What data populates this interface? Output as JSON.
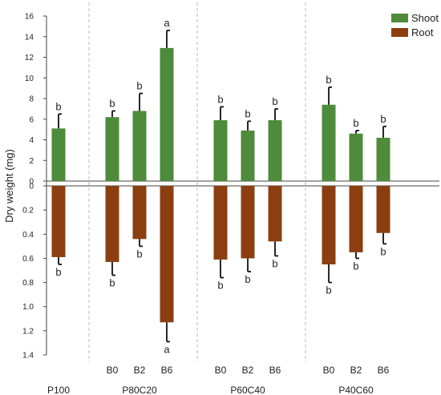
{
  "chart_data": {
    "type": "bar",
    "ylabel": "Dry weight (mg)",
    "legend": {
      "placement": "top-right",
      "entries": [
        "Shoot",
        "Root"
      ]
    },
    "colors": {
      "shoot": "#4e8b3a",
      "root": "#8b3f11",
      "error": "#111111",
      "separator": "#bbbbbb"
    },
    "shoot_axis": {
      "ylim": [
        0,
        16
      ],
      "ticks": [
        "0",
        "2",
        "4",
        "6",
        "8",
        "10",
        "12",
        "14",
        "16"
      ]
    },
    "root_axis": {
      "ylim": [
        0,
        1.4
      ],
      "ticks": [
        "0",
        "0.2",
        "0.4",
        "0.6",
        "0.8",
        "1.0",
        "1.2",
        "1.4"
      ]
    },
    "groups": [
      {
        "name": "P100",
        "subcategories": [
          ""
        ]
      },
      {
        "name": "P80C20",
        "subcategories": [
          "B0",
          "B2",
          "B6"
        ]
      },
      {
        "name": "P60C40",
        "subcategories": [
          "B0",
          "B2",
          "B6"
        ]
      },
      {
        "name": "P40C60",
        "subcategories": [
          "B0",
          "B2",
          "B6"
        ]
      }
    ],
    "categories": [
      "P100",
      "P80C20 B0",
      "P80C20 B2",
      "P80C20 B6",
      "P60C40 B0",
      "P60C40 B2",
      "P60C40 B6",
      "P40C60 B0",
      "P40C60 B2",
      "P40C60 B6"
    ],
    "series": [
      {
        "name": "Shoot",
        "values": [
          5.1,
          6.2,
          6.8,
          12.9,
          5.9,
          4.9,
          5.9,
          7.4,
          4.6,
          4.2
        ],
        "errors": [
          1.4,
          0.6,
          1.7,
          1.7,
          1.3,
          0.9,
          1.1,
          1.7,
          0.3,
          1.1
        ],
        "letters": [
          "b",
          "b",
          "b",
          "a",
          "b",
          "b",
          "b",
          "b",
          "b",
          "b"
        ]
      },
      {
        "name": "Root",
        "values": [
          0.59,
          0.63,
          0.44,
          1.13,
          0.61,
          0.6,
          0.46,
          0.65,
          0.55,
          0.39
        ],
        "errors": [
          0.06,
          0.11,
          0.06,
          0.16,
          0.15,
          0.11,
          0.12,
          0.15,
          0.05,
          0.09
        ],
        "letters": [
          "b",
          "b",
          "b",
          "a",
          "b",
          "b",
          "b",
          "b",
          "b",
          "b"
        ]
      }
    ]
  }
}
